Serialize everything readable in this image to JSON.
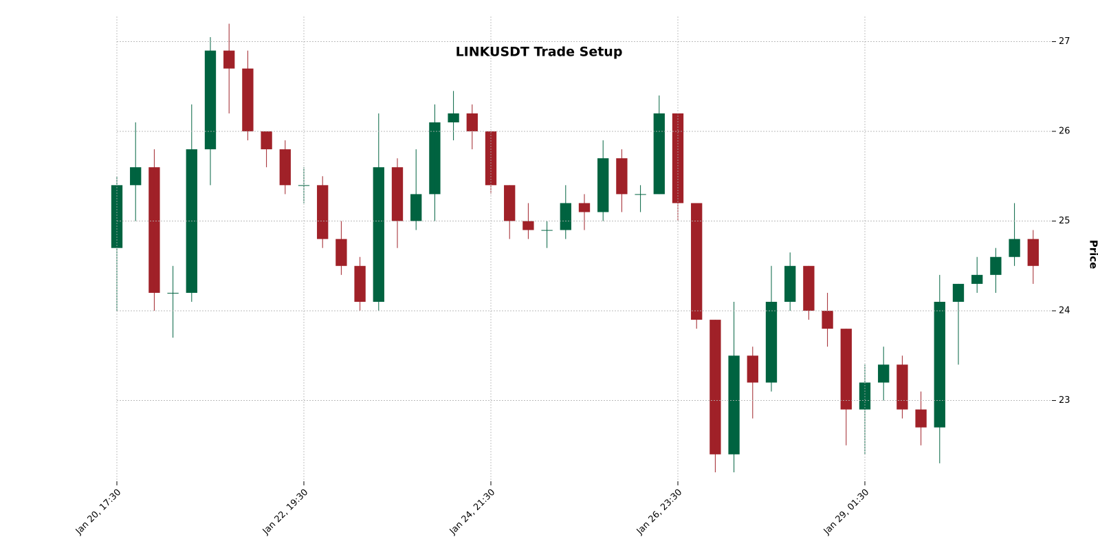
{
  "chart_data": {
    "type": "candlestick",
    "title": "LINKUSDT Trade Setup",
    "y_label": "Price",
    "up_color": "#006340",
    "down_color": "#a02128",
    "grid": true,
    "ylim": [
      22.1,
      27.28
    ],
    "yticks": [
      23,
      24,
      25,
      26,
      27
    ],
    "xlim": [
      0,
      50
    ],
    "xticks": [
      {
        "value": 0,
        "label": "Jan 20, 17:30"
      },
      {
        "value": 10,
        "label": "Jan 22, 19:30"
      },
      {
        "value": 20,
        "label": "Jan 24, 21:30"
      },
      {
        "value": 30,
        "label": "Jan 26, 23:30"
      },
      {
        "value": 40,
        "label": "Jan 29, 01:30"
      }
    ],
    "open": [
      24.7,
      25.4,
      25.6,
      24.2,
      24.2,
      25.8,
      26.9,
      26.7,
      26.0,
      25.8,
      25.4,
      25.4,
      24.8,
      24.5,
      24.1,
      25.6,
      25.0,
      25.3,
      26.1,
      26.2,
      26.0,
      25.4,
      25.0,
      24.9,
      24.9,
      25.2,
      25.1,
      25.7,
      25.3,
      25.3,
      26.2,
      25.2,
      23.9,
      22.4,
      23.5,
      23.2,
      24.1,
      24.5,
      24.0,
      23.8,
      22.9,
      23.2,
      23.4,
      22.9,
      22.7,
      24.1,
      24.3,
      24.4,
      24.6,
      24.8
    ],
    "high": [
      25.5,
      26.1,
      25.8,
      24.5,
      26.3,
      27.05,
      27.2,
      26.9,
      26.0,
      25.9,
      25.6,
      25.5,
      25.0,
      24.6,
      26.2,
      25.7,
      25.8,
      26.3,
      26.45,
      26.3,
      26.0,
      25.4,
      25.2,
      25.0,
      25.4,
      25.3,
      25.9,
      25.8,
      25.4,
      26.4,
      26.2,
      25.2,
      23.9,
      24.1,
      23.6,
      24.5,
      24.65,
      24.5,
      24.2,
      23.8,
      23.4,
      23.6,
      23.5,
      23.1,
      24.4,
      24.3,
      24.6,
      24.7,
      25.2,
      24.9
    ],
    "low": [
      24.0,
      25.0,
      24.0,
      23.7,
      24.1,
      25.4,
      26.2,
      25.9,
      25.6,
      25.3,
      25.2,
      24.7,
      24.4,
      24.0,
      24.0,
      24.7,
      24.9,
      25.0,
      25.9,
      25.8,
      25.3,
      24.8,
      24.8,
      24.7,
      24.8,
      24.9,
      25.0,
      25.1,
      25.1,
      25.3,
      25.0,
      23.8,
      22.2,
      22.2,
      22.8,
      23.1,
      24.0,
      23.9,
      23.6,
      22.5,
      22.4,
      23.0,
      22.8,
      22.5,
      22.3,
      23.4,
      24.2,
      24.2,
      24.5,
      24.3
    ],
    "close": [
      25.4,
      25.6,
      24.2,
      24.2,
      25.8,
      26.9,
      26.7,
      26.0,
      25.8,
      25.4,
      25.4,
      24.8,
      24.5,
      24.1,
      25.6,
      25.0,
      25.3,
      26.1,
      26.2,
      26.0,
      25.4,
      25.0,
      24.9,
      24.9,
      25.2,
      25.1,
      25.7,
      25.3,
      25.3,
      26.2,
      25.2,
      23.9,
      22.4,
      23.5,
      23.2,
      24.1,
      24.5,
      24.0,
      23.8,
      22.9,
      23.2,
      23.4,
      22.9,
      22.7,
      24.1,
      24.3,
      24.4,
      24.6,
      24.8,
      24.5
    ]
  }
}
